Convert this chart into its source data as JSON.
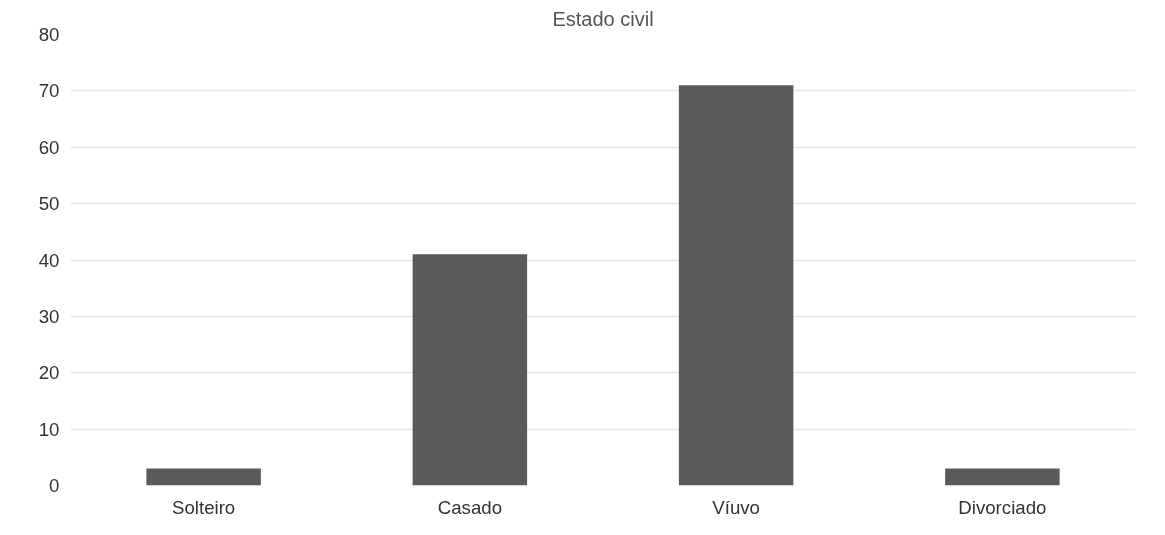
{
  "chart_data": {
    "type": "bar",
    "title": "Estado civil",
    "categories": [
      "Solteiro",
      "Casado",
      "Víuvo",
      "Divorciado"
    ],
    "values": [
      3,
      41,
      71,
      3
    ],
    "color": "#5a5a5a",
    "ylim": [
      0,
      80
    ],
    "yticks": [
      0,
      10,
      20,
      30,
      40,
      50,
      60,
      70,
      80
    ],
    "grid": "y"
  }
}
